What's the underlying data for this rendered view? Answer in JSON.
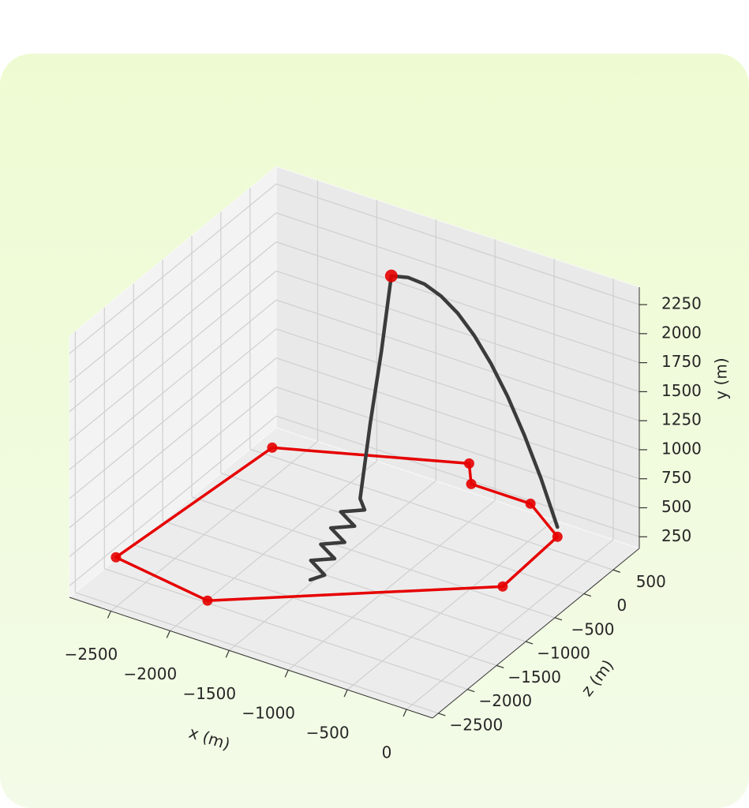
{
  "chart_data": {
    "type": "line3d",
    "xlabel": "x (m)",
    "ylabel": "y (m)",
    "zlabel": "z (m)",
    "xlim": [
      -2850,
      220
    ],
    "ylim": [
      150,
      2400
    ],
    "zlim": [
      -2600,
      950
    ],
    "xticks": [
      {
        "value": -2500,
        "label": "−2500"
      },
      {
        "value": -2000,
        "label": "−2000"
      },
      {
        "value": -1500,
        "label": "−1500"
      },
      {
        "value": -1000,
        "label": "−1000"
      },
      {
        "value": -500,
        "label": "−500"
      },
      0
    ],
    "yticks": [
      250,
      500,
      750,
      1000,
      1250,
      1500,
      1750,
      2000,
      2250
    ],
    "zticks": [
      {
        "value": -2500,
        "label": "−2500"
      },
      {
        "value": -2000,
        "label": "−2000"
      },
      {
        "value": -1500,
        "label": "−1500"
      },
      {
        "value": -1000,
        "label": "−1000"
      },
      {
        "value": -500,
        "label": "−500"
      },
      0,
      500
    ],
    "grid": true,
    "series": [
      {
        "color": "#3b3b3b",
        "line": true,
        "marker": false,
        "closed": false,
        "x": [
          -1450,
          -1355,
          -1500,
          -1325,
          -1470,
          -1295,
          -1440,
          -1265,
          -1410,
          -1235,
          -1300,
          -1340,
          -1370,
          -1400,
          -1275,
          -1149,
          -1024,
          -898,
          -772,
          -647,
          -521,
          -396,
          -270,
          -145
        ],
        "y": [
          243,
          295,
          348,
          400,
          452,
          505,
          557,
          609,
          661,
          714,
          766,
          1300,
          1800,
          2347,
          2364,
          2336,
          2263,
          2145,
          1981,
          1772,
          1518,
          1218,
          873,
          483
        ],
        "z": [
          -1309,
          -1254,
          -1198,
          -1143,
          -1088,
          -1032,
          -977,
          -922,
          -867,
          -811,
          -756,
          -500,
          -250,
          -18,
          12,
          43,
          73,
          104,
          134,
          164,
          195,
          225,
          256,
          286
        ]
      },
      {
        "color": "#e60000",
        "line": true,
        "marker": true,
        "closed": true,
        "x": [
          -2515,
          -1214,
          -1051,
          -550,
          -145,
          -110,
          -1782,
          -2651
        ],
        "y": [
          400,
          400,
          400,
          400,
          400,
          400,
          400,
          400
        ],
        "z": [
          201,
          940,
          645,
          645,
          286,
          -726,
          -2398,
          -2206
        ]
      },
      {
        "color": "#e60000",
        "line": false,
        "marker": true,
        "closed": false,
        "x": [
          -1400
        ],
        "y": [
          2347
        ],
        "z": [
          -18
        ]
      }
    ]
  }
}
